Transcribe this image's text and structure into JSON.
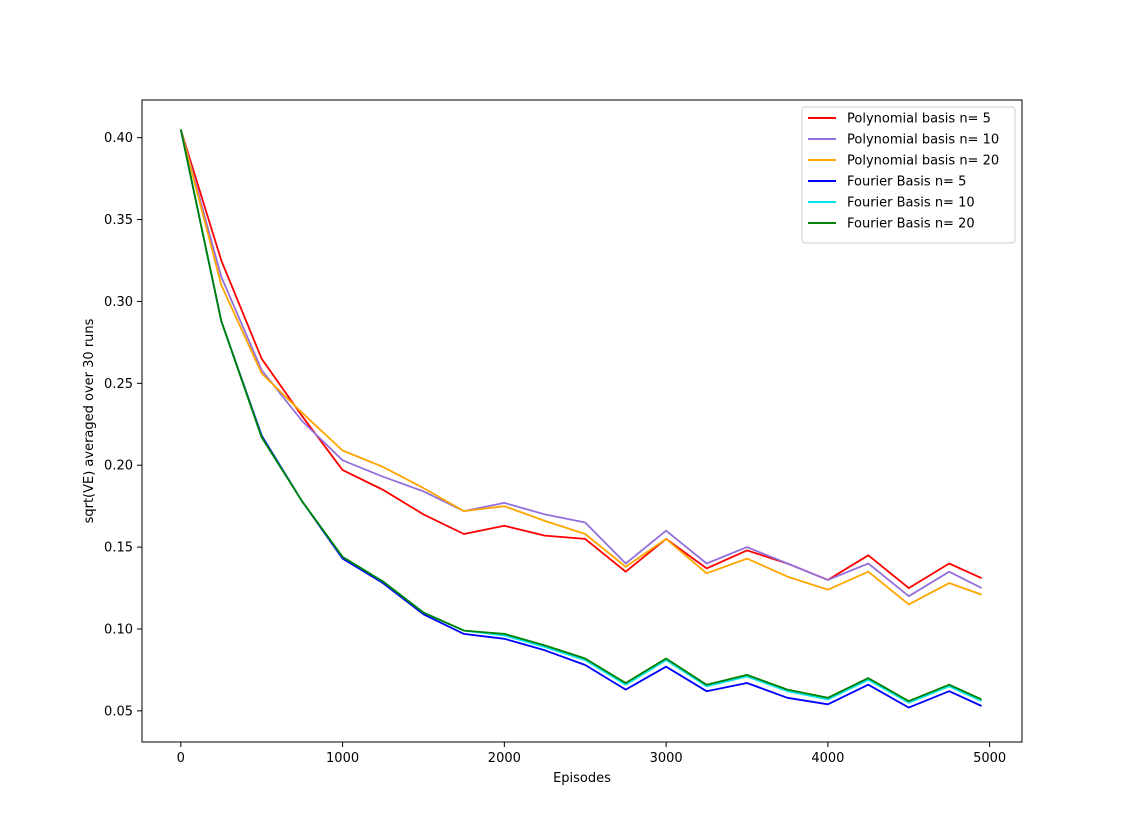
{
  "chart_data": {
    "type": "line",
    "xlabel": "Episodes",
    "ylabel": "sqrt(VE) averaged over 30 runs",
    "xlim": [
      -240,
      5200
    ],
    "ylim": [
      0.031,
      0.423
    ],
    "xticks": [
      0,
      1000,
      2000,
      3000,
      4000,
      5000
    ],
    "yticks": [
      0.05,
      0.1,
      0.15,
      0.2,
      0.25,
      0.3,
      0.35,
      0.4
    ],
    "ytick_labels": [
      "0.05",
      "0.10",
      "0.15",
      "0.20",
      "0.25",
      "0.30",
      "0.35",
      "0.40"
    ],
    "grid": false,
    "legend_position": "top-right",
    "x": [
      0,
      250,
      500,
      750,
      1000,
      1250,
      1500,
      1750,
      2000,
      2250,
      2500,
      2750,
      3000,
      3250,
      3500,
      3750,
      4000,
      4250,
      4500,
      4750,
      4950
    ],
    "series": [
      {
        "name": "Polynomial basis n= 5",
        "color": "#ff0000",
        "values": [
          0.405,
          0.325,
          0.265,
          0.23,
          0.197,
          0.185,
          0.17,
          0.158,
          0.163,
          0.157,
          0.155,
          0.135,
          0.155,
          0.137,
          0.148,
          0.14,
          0.13,
          0.145,
          0.125,
          0.14,
          0.131
        ]
      },
      {
        "name": "Polynomial basis n= 10",
        "color": "#9370db",
        "values": [
          0.405,
          0.315,
          0.258,
          0.227,
          0.203,
          0.193,
          0.184,
          0.172,
          0.177,
          0.17,
          0.165,
          0.14,
          0.16,
          0.14,
          0.15,
          0.14,
          0.13,
          0.14,
          0.12,
          0.135,
          0.125
        ]
      },
      {
        "name": "Polynomial basis n= 20",
        "color": "#ffa500",
        "values": [
          0.405,
          0.31,
          0.256,
          0.232,
          0.209,
          0.199,
          0.186,
          0.172,
          0.175,
          0.166,
          0.158,
          0.138,
          0.155,
          0.134,
          0.143,
          0.132,
          0.124,
          0.135,
          0.115,
          0.128,
          0.121
        ]
      },
      {
        "name": "Fourier Basis n= 5",
        "color": "#0000ff",
        "values": [
          0.405,
          0.288,
          0.218,
          0.178,
          0.143,
          0.128,
          0.109,
          0.097,
          0.094,
          0.087,
          0.078,
          0.063,
          0.077,
          0.062,
          0.067,
          0.058,
          0.054,
          0.066,
          0.052,
          0.062,
          0.053
        ]
      },
      {
        "name": "Fourier Basis n= 10",
        "color": "#00e5ee",
        "values": [
          0.405,
          0.288,
          0.217,
          0.178,
          0.144,
          0.129,
          0.11,
          0.099,
          0.096,
          0.089,
          0.081,
          0.066,
          0.081,
          0.065,
          0.071,
          0.062,
          0.057,
          0.069,
          0.055,
          0.065,
          0.056
        ]
      },
      {
        "name": "Fourier Basis n= 20",
        "color": "#008000",
        "values": [
          0.405,
          0.288,
          0.217,
          0.178,
          0.144,
          0.129,
          0.11,
          0.099,
          0.097,
          0.09,
          0.082,
          0.067,
          0.082,
          0.066,
          0.072,
          0.063,
          0.058,
          0.07,
          0.056,
          0.066,
          0.057
        ]
      }
    ]
  }
}
